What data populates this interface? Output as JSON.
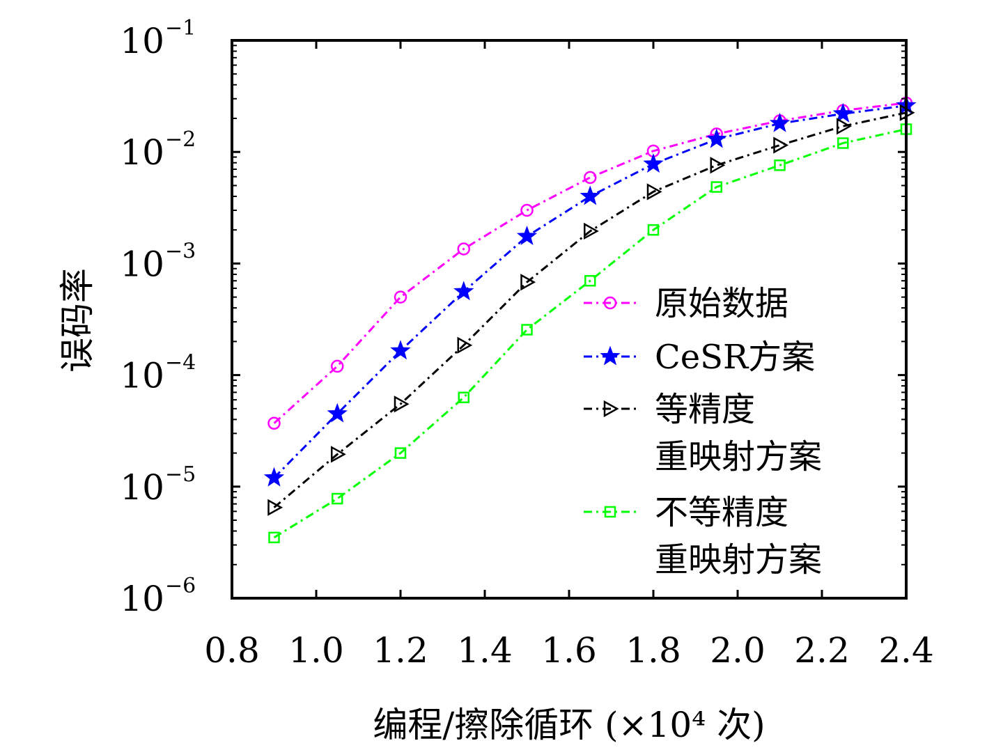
{
  "chart_data": {
    "type": "line",
    "title": "",
    "xlabel": "编程/擦除循环 (×10⁴ 次)",
    "ylabel": "误码率",
    "y_scale": "log",
    "xlim": [
      0.8,
      2.4
    ],
    "ylim": [
      1e-06,
      0.1
    ],
    "grid": false,
    "legend_position": "right",
    "x_ticks": [
      "0.8",
      "1.0",
      "1.2",
      "1.4",
      "1.6",
      "1.8",
      "2.0",
      "2.2",
      "2.4"
    ],
    "y_ticks": [
      {
        "base": "10",
        "exp": "−6"
      },
      {
        "base": "10",
        "exp": "−5"
      },
      {
        "base": "10",
        "exp": "−4"
      },
      {
        "base": "10",
        "exp": "−3"
      },
      {
        "base": "10",
        "exp": "−2"
      },
      {
        "base": "10",
        "exp": "−1"
      }
    ],
    "x": [
      0.9,
      1.05,
      1.2,
      1.35,
      1.5,
      1.65,
      1.8,
      1.95,
      2.1,
      2.25,
      2.4
    ],
    "series": [
      {
        "name": "原始数据",
        "color": "#ff00ff",
        "marker": "circle",
        "values": [
          3.7e-05,
          0.00012,
          0.0005,
          0.00135,
          0.003,
          0.0059,
          0.0102,
          0.0145,
          0.019,
          0.0235,
          0.0275
        ]
      },
      {
        "name": "CeSR方案",
        "color": "#0000ff",
        "marker": "star",
        "values": [
          1.2e-05,
          4.5e-05,
          0.000165,
          0.00056,
          0.00175,
          0.004,
          0.0078,
          0.013,
          0.018,
          0.022,
          0.026
        ]
      },
      {
        "name": "等精度重映射方案",
        "color": "#000000",
        "marker": "triangle-right",
        "values": [
          6.5e-06,
          1.95e-05,
          5.5e-05,
          0.000185,
          0.00068,
          0.00195,
          0.0044,
          0.0076,
          0.0115,
          0.017,
          0.0225
        ]
      },
      {
        "name": "不等精度重映射方案",
        "color": "#00ff00",
        "marker": "square",
        "values": [
          3.5e-06,
          7.8e-06,
          2e-05,
          6.3e-05,
          0.000255,
          0.0007,
          0.002,
          0.00485,
          0.0076,
          0.012,
          0.016
        ]
      }
    ]
  },
  "legend": {
    "items": [
      {
        "lines": [
          "原始数据"
        ]
      },
      {
        "lines": [
          "CeSR方案"
        ]
      },
      {
        "lines": [
          "等精度",
          "重映射方案"
        ]
      },
      {
        "lines": [
          "不等精度",
          "重映射方案"
        ]
      }
    ]
  }
}
